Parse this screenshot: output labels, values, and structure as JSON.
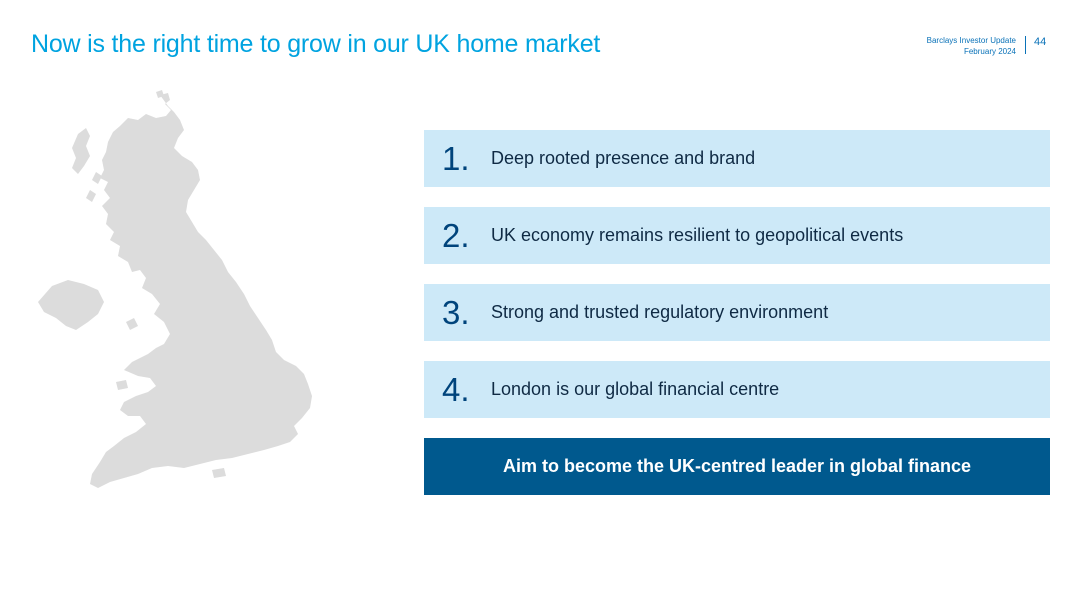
{
  "header": {
    "title": "Now is the right time to grow in our UK home market",
    "meta_line1": "Barclays Investor Update",
    "meta_line2": "February 2024",
    "page_number": "44"
  },
  "map": {
    "icon": "uk-map-icon",
    "color": "#dcdcdc"
  },
  "points": [
    {
      "number": "1.",
      "text": "Deep rooted presence and brand"
    },
    {
      "number": "2.",
      "text": "UK economy remains resilient to geopolitical events"
    },
    {
      "number": "3.",
      "text": "Strong and trusted regulatory environment"
    },
    {
      "number": "4.",
      "text": "London is our global financial centre"
    }
  ],
  "banner": {
    "text": "Aim to become the UK-centred leader in global finance"
  },
  "colors": {
    "title": "#00a3e0",
    "card_bg": "#cde9f8",
    "number": "#00447c",
    "banner_bg": "#00598e"
  }
}
